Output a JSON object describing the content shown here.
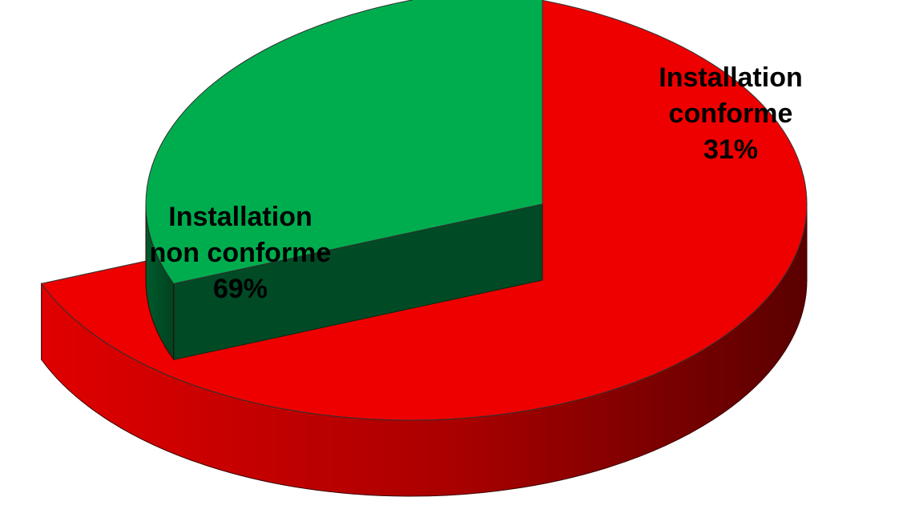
{
  "chart_data": {
    "type": "pie",
    "style": "3d-exploded",
    "slices": [
      {
        "label_lines": [
          "Installation",
          "non conforme",
          "69%"
        ],
        "category": "Installation non conforme",
        "value": 69,
        "color": "#ee0000",
        "side_color": "#b30000"
      },
      {
        "label_lines": [
          "Installation",
          "conforme",
          "31%"
        ],
        "category": "Installation conforme",
        "value": 31,
        "color": "#00ad4e",
        "side_color": "#00522a"
      }
    ],
    "legend": "none",
    "title": ""
  }
}
